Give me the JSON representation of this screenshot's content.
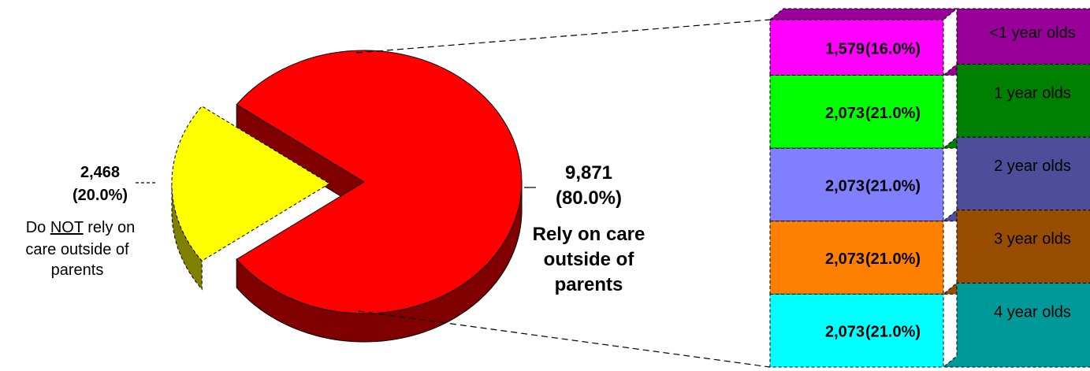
{
  "chart_data": {
    "type": "pie",
    "pie": {
      "slices": [
        {
          "value": 9871,
          "value_label": "9,871",
          "percent_label": "(80.0%)",
          "caption_lines": [
            "Rely on care",
            "outside of",
            "parents"
          ],
          "color": "#ff0000",
          "side_color": "#800000"
        },
        {
          "value": 2468,
          "value_label": "2,468",
          "percent_label": "(20.0%)",
          "caption_prefix": "Do ",
          "caption_emphasis": "NOT",
          "caption_line1_suffix": " rely on",
          "caption_lines": [
            "care outside of",
            "parents"
          ],
          "color": "#ffff00",
          "side_color": "#808000"
        }
      ]
    },
    "breakdown": {
      "of_slice": "Rely on care outside of parents",
      "segments": [
        {
          "category": "<1 year olds",
          "value": 1579,
          "value_label": "1,579",
          "percent_label": "(16.0%)",
          "color": "#ff00ff",
          "side_color": "#990099"
        },
        {
          "category": "1 year olds",
          "value": 2073,
          "value_label": "2,073",
          "percent_label": "(21.0%)",
          "color": "#00ff00",
          "side_color": "#008000"
        },
        {
          "category": "2 year olds",
          "value": 2073,
          "value_label": "2,073",
          "percent_label": "(21.0%)",
          "color": "#8080ff",
          "side_color": "#4d4d99"
        },
        {
          "category": "3 year olds",
          "value": 2073,
          "value_label": "2,073",
          "percent_label": "(21.0%)",
          "color": "#ff8000",
          "side_color": "#994d00"
        },
        {
          "category": "4 year olds",
          "value": 2073,
          "value_label": "2,073",
          "percent_label": "(21.0%)",
          "color": "#00ffff",
          "side_color": "#009999"
        }
      ]
    }
  }
}
